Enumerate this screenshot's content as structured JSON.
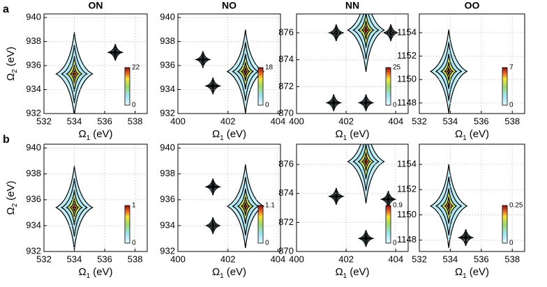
{
  "chart_data": [
    {
      "type": "contour",
      "panel": "a",
      "title": "ON",
      "xlim": [
        532,
        538.8
      ],
      "xticks": [
        532,
        534,
        536,
        538
      ],
      "ylim": [
        932,
        940.3
      ],
      "yticks": [
        932,
        934,
        936,
        938,
        940
      ],
      "xlabel": {
        "symbol": "Ω",
        "sub": "1",
        "unit": "(eV)"
      },
      "ylabel": {
        "symbol": "Ω",
        "sub": "2",
        "unit": "(eV)"
      },
      "clim": [
        0,
        22
      ],
      "cticks": [
        0,
        22
      ],
      "peaks": {
        "x": [
          534,
          536.7
        ],
        "y": [
          935.3,
          937.1
        ]
      },
      "grid": true
    },
    {
      "type": "contour",
      "title": "NO",
      "xlim": [
        400,
        404.1
      ],
      "xticks": [
        400,
        402,
        404
      ],
      "ylim": [
        932,
        940.3
      ],
      "yticks": [
        932,
        934,
        936,
        938,
        940
      ],
      "xlabel": {
        "symbol": "Ω",
        "sub": "1",
        "unit": "(eV)"
      },
      "clim": [
        0,
        18
      ],
      "cticks": [
        0,
        18
      ],
      "peaks": {
        "x": [
          402.7,
          401.4,
          401.0
        ],
        "y": [
          935.5,
          934.3,
          936.5
        ]
      },
      "grid": true
    },
    {
      "type": "contour",
      "title": "NN",
      "xlim": [
        400,
        404.5
      ],
      "xticks": [
        400,
        402,
        404
      ],
      "ylim": [
        870,
        877.4
      ],
      "yticks": [
        870,
        872,
        874,
        876
      ],
      "xlabel": {
        "symbol": "Ω",
        "sub": "1",
        "unit": "(eV)"
      },
      "clim": [
        0,
        25
      ],
      "cticks": [
        0,
        25
      ],
      "peaks": {
        "x": [
          402.8,
          402.8,
          401.6,
          401.5,
          403.8
        ],
        "y": [
          876.2,
          870.8,
          876.0,
          870.8,
          876.0
        ]
      },
      "grid": true
    },
    {
      "type": "contour",
      "title": "OO",
      "xlim": [
        532,
        538.8
      ],
      "xticks": [
        532,
        534,
        536,
        538
      ],
      "ylim": [
        1147.1,
        1155.6
      ],
      "yticks": [
        1148,
        1150,
        1152,
        1154
      ],
      "xlabel": {
        "symbol": "Ω",
        "sub": "1",
        "unit": "(eV)"
      },
      "clim": [
        0,
        7
      ],
      "cticks": [
        0,
        7
      ],
      "peaks": {
        "x": [
          533.9
        ],
        "y": [
          1150.7
        ]
      },
      "grid": true
    },
    {
      "type": "contour",
      "panel": "b",
      "xlim": [
        532,
        538.8
      ],
      "xticks": [
        532,
        534,
        536,
        538
      ],
      "ylim": [
        932,
        940.3
      ],
      "yticks": [
        932,
        934,
        936,
        938,
        940
      ],
      "xlabel": {
        "symbol": "Ω",
        "sub": "1",
        "unit": "(eV)"
      },
      "ylabel": {
        "symbol": "Ω",
        "sub": "2",
        "unit": "(eV)"
      },
      "clim": [
        0,
        1
      ],
      "cticks": [
        0,
        1
      ],
      "peaks": {
        "x": [
          534
        ],
        "y": [
          935.4
        ]
      },
      "grid": true
    },
    {
      "type": "contour",
      "xlim": [
        400,
        404.1
      ],
      "xticks": [
        400,
        402,
        404
      ],
      "ylim": [
        932,
        940.3
      ],
      "yticks": [
        932,
        934,
        936,
        938,
        940
      ],
      "xlabel": {
        "symbol": "Ω",
        "sub": "1",
        "unit": "(eV)"
      },
      "clim": [
        0,
        1.1
      ],
      "cticks": [
        0,
        1.1
      ],
      "peaks": {
        "x": [
          402.7,
          401.4,
          401.4
        ],
        "y": [
          935.5,
          934.0,
          937.0
        ]
      },
      "grid": true
    },
    {
      "type": "contour",
      "xlim": [
        400,
        404.5
      ],
      "xticks": [
        400,
        402,
        404
      ],
      "ylim": [
        870,
        877.4
      ],
      "yticks": [
        870,
        872,
        874,
        876
      ],
      "xlabel": {
        "symbol": "Ω",
        "sub": "1",
        "unit": "(eV)"
      },
      "clim": [
        0,
        0.9
      ],
      "cticks": [
        0,
        0.9
      ],
      "peaks": {
        "x": [
          402.8,
          401.6,
          402.8,
          403.7
        ],
        "y": [
          876.2,
          873.8,
          870.9,
          873.6
        ]
      },
      "grid": true
    },
    {
      "type": "contour",
      "xlim": [
        532,
        538.8
      ],
      "xticks": [
        532,
        534,
        536,
        538
      ],
      "ylim": [
        1147.1,
        1155.6
      ],
      "yticks": [
        1148,
        1150,
        1152,
        1154
      ],
      "xlabel": {
        "symbol": "Ω",
        "sub": "1",
        "unit": "(eV)"
      },
      "clim": [
        0,
        0.25
      ],
      "cticks": [
        0,
        0.25
      ],
      "peaks": {
        "x": [
          533.9,
          535
        ],
        "y": [
          1150.7,
          1148.2
        ]
      },
      "grid": true
    }
  ]
}
